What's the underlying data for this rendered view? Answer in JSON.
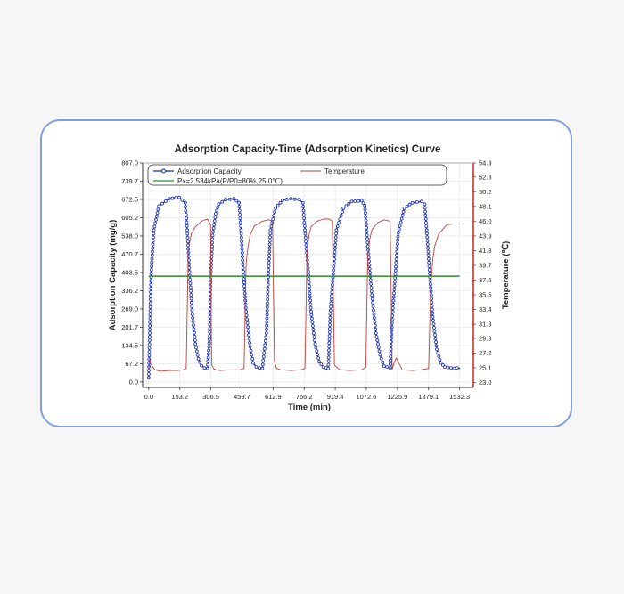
{
  "chart_data": {
    "type": "line",
    "title": "Adsorption Capacity-Time (Adsorption Kinetics) Curve",
    "xlabel": "Time (min)",
    "ylabel": "Adsorption Capacity (mg/g)",
    "y2label": "Temperature (℃)",
    "xlim": [
      -30,
      1600
    ],
    "ylim": [
      -20,
      807.0
    ],
    "y2lim": [
      22.3,
      54.3
    ],
    "xticks": [
      "0.0",
      "153.2",
      "306.5",
      "459.7",
      "612.9",
      "766.2",
      "919.4",
      "1072.6",
      "1225.9",
      "1379.1",
      "1532.3"
    ],
    "yticks": [
      "807.0",
      "739.7",
      "672.5",
      "605.2",
      "538.0",
      "470.7",
      "403.5",
      "336.2",
      "269.0",
      "201.7",
      "134.5",
      "67.2",
      "0.0"
    ],
    "y2ticks": [
      "54.3",
      "52.3",
      "50.2",
      "48.1",
      "46.0",
      "43.9",
      "41.8",
      "39.7",
      "37.6",
      "35.5",
      "33.4",
      "31.3",
      "29.3",
      "27.2",
      "25.1",
      "23.0"
    ],
    "grid": true,
    "legend_position": "top",
    "series": [
      {
        "name": "Adsorption Capacity",
        "axis": "left",
        "color": "#1a2fb0",
        "marker": "circle",
        "x": [
          0,
          5,
          12,
          25,
          50,
          100,
          150,
          180,
          190,
          200,
          215,
          230,
          245,
          260,
          275,
          290,
          300,
          305,
          315,
          330,
          345,
          380,
          420,
          445,
          455,
          465,
          480,
          500,
          515,
          530,
          545,
          560,
          580,
          590,
          600,
          625,
          660,
          700,
          740,
          760,
          770,
          785,
          800,
          820,
          840,
          860,
          875,
          885,
          895,
          925,
          960,
          1000,
          1050,
          1065,
          1080,
          1100,
          1120,
          1140,
          1160,
          1190,
          1200,
          1230,
          1260,
          1300,
          1345,
          1360,
          1370,
          1385,
          1400,
          1420,
          1440,
          1460,
          1490,
          1505,
          1520,
          1535
        ],
        "values": [
          15,
          180,
          400,
          560,
          648,
          675,
          680,
          660,
          560,
          420,
          250,
          140,
          85,
          60,
          52,
          50,
          170,
          380,
          540,
          620,
          655,
          672,
          675,
          660,
          560,
          420,
          260,
          130,
          70,
          55,
          52,
          50,
          180,
          400,
          560,
          640,
          670,
          675,
          672,
          660,
          560,
          420,
          260,
          140,
          75,
          55,
          52,
          50,
          250,
          560,
          640,
          665,
          668,
          650,
          500,
          320,
          180,
          100,
          58,
          52,
          230,
          550,
          640,
          660,
          665,
          655,
          560,
          400,
          240,
          120,
          70,
          55,
          52,
          50,
          52,
          50
        ]
      },
      {
        "name": "Temperature",
        "axis": "right",
        "color": "#b8413a",
        "x": [
          0,
          2,
          5,
          10,
          30,
          60,
          100,
          140,
          170,
          185,
          195,
          210,
          230,
          260,
          290,
          305,
          310,
          320,
          330,
          350,
          400,
          450,
          470,
          480,
          490,
          500,
          520,
          560,
          590,
          610,
          620,
          630,
          650,
          700,
          750,
          770,
          780,
          790,
          800,
          830,
          860,
          890,
          905,
          915,
          940,
          990,
          1050,
          1070,
          1080,
          1090,
          1100,
          1130,
          1160,
          1190,
          1200,
          1210,
          1220,
          1250,
          1300,
          1340,
          1380,
          1390,
          1400,
          1410,
          1430,
          1470,
          1500,
          1520,
          1535
        ],
        "values": [
          24.8,
          25.3,
          26.5,
          25.6,
          24.8,
          24.6,
          24.7,
          24.7,
          24.8,
          25.0,
          42.0,
          44.2,
          45.2,
          46.0,
          46.3,
          45.5,
          25.5,
          25.0,
          24.8,
          24.7,
          24.8,
          24.8,
          25.0,
          40.0,
          42.5,
          44.0,
          45.3,
          46.0,
          46.2,
          46.0,
          26.0,
          25.0,
          24.8,
          24.7,
          24.8,
          25.0,
          41.5,
          44.0,
          45.2,
          46.0,
          46.3,
          46.3,
          46.0,
          25.5,
          24.8,
          24.7,
          24.8,
          25.2,
          41.0,
          43.5,
          44.8,
          45.8,
          46.2,
          46.0,
          24.9,
          25.8,
          26.5,
          24.8,
          24.7,
          24.8,
          25.0,
          36.5,
          40.5,
          42.5,
          44.2,
          45.5,
          45.6,
          45.6,
          45.6
        ]
      },
      {
        "name": "Px=2.534kPa(P/P0=80%,25.0℃)",
        "axis": "left",
        "color": "#2e8b2e",
        "x": [
          0,
          1532.3
        ],
        "values": [
          390,
          390
        ]
      }
    ]
  }
}
